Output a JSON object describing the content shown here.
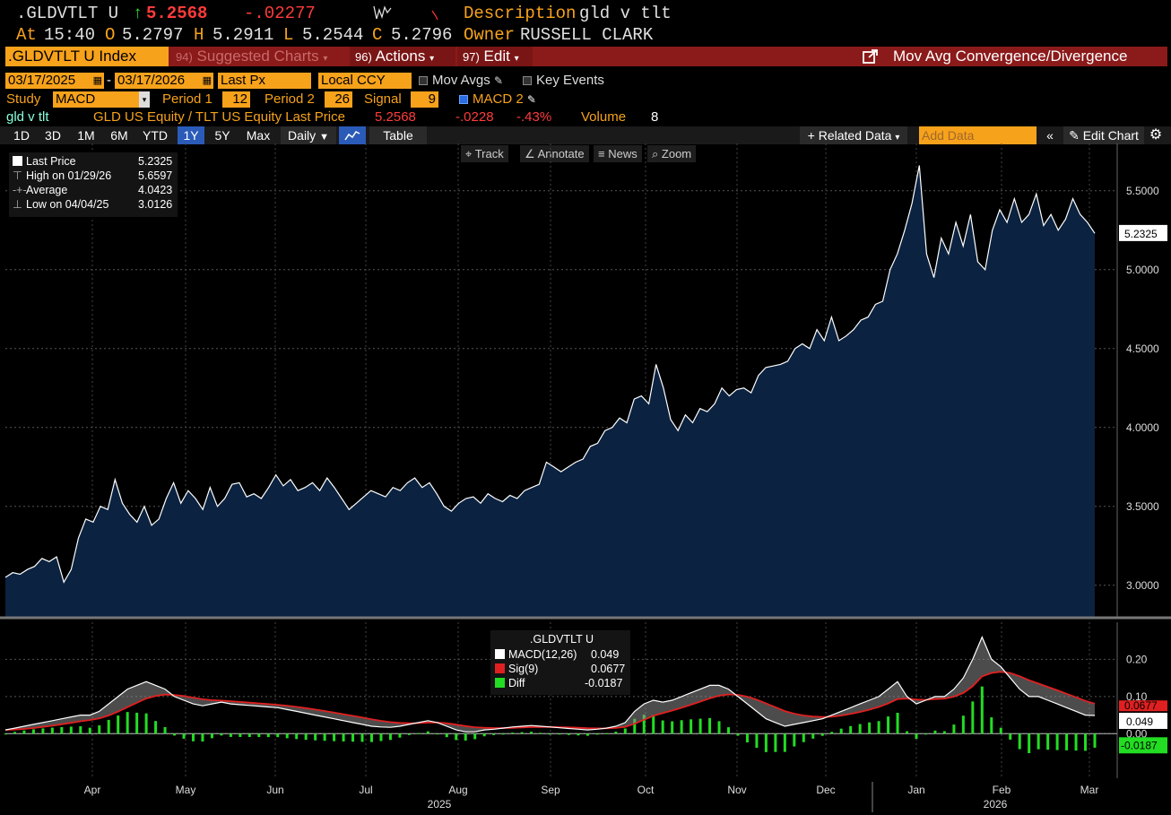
{
  "header": {
    "ticker": ".GLDVTLT U",
    "arrow": "↑",
    "last": "5.2568",
    "change": "-.02277",
    "desc_label": "Description",
    "desc_value": "gld v tlt",
    "at_label": "At",
    "time": "15:40",
    "o_label": "O",
    "open": "5.2797",
    "h_label": "H",
    "high": "5.2911",
    "l_label": "L",
    "low": "5.2544",
    "c_label": "C",
    "close": "5.2796",
    "owner_label": "Owner",
    "owner_value": "RUSSELL CLARK"
  },
  "menu": {
    "security": ".GLDVTLT U Index",
    "suggested_num": "94)",
    "suggested": "Suggested Charts",
    "actions_num": "96)",
    "actions": "Actions",
    "edit_num": "97)",
    "edit": "Edit",
    "study_title": "Mov Avg Convergence/Divergence"
  },
  "controls": {
    "start_date": "03/17/2025",
    "dash": "-",
    "end_date": "03/17/2026",
    "price_type": "Last Px",
    "currency": "Local CCY",
    "mov_avgs": "Mov Avgs",
    "key_events": "Key Events",
    "study_label": "Study",
    "study_value": "MACD",
    "period1_label": "Period 1",
    "period1": "12",
    "period2_label": "Period 2",
    "period2": "26",
    "signal_label": "Signal",
    "signal": "9",
    "macd2": "MACD 2"
  },
  "info_row": {
    "name": "gld v tlt",
    "formula": "GLD US Equity / TLT US Equity Last Price",
    "last": "5.2568",
    "change": "-.0228",
    "pct": "-.43%",
    "volume_label": "Volume",
    "volume": "8"
  },
  "tabs": [
    "1D",
    "3D",
    "1M",
    "6M",
    "YTD",
    "1Y",
    "5Y",
    "Max"
  ],
  "selected_tab": "1Y",
  "frequency": "Daily",
  "table_label": "Table",
  "related_data": "Related Data",
  "add_data_placeholder": "Add Data",
  "edit_chart": "Edit Chart",
  "subtoolbar": {
    "track": "Track",
    "annotate": "Annotate",
    "news": "News",
    "zoom": "Zoom"
  },
  "legend_price": {
    "last_label": "Last Price",
    "last_value": "5.2325",
    "high_label": "High on 01/29/26",
    "high_value": "5.6597",
    "avg_label": "Average",
    "avg_value": "4.0423",
    "low_label": "Low on 04/04/25",
    "low_value": "3.0126"
  },
  "legend_macd": {
    "title": ".GLDVTLT U",
    "macd_label": "MACD(12,26)",
    "macd_value": "0.049",
    "sig_label": "Sig(9)",
    "sig_value": "0.0677",
    "diff_label": "Diff",
    "diff_value": "-0.0187"
  },
  "colors": {
    "orange": "#f7a21b",
    "menu_red": "#8b1a1a",
    "area_fill": "#0b2240",
    "price_line": "#ffffff",
    "signal_red": "#e02020",
    "diff_green": "#22dd22"
  },
  "chart_data": [
    {
      "type": "area",
      "title": "GLD US Equity / TLT US Equity Last Price",
      "x_range": [
        "2025-03-17",
        "2026-03-17"
      ],
      "ylim": [
        2.8,
        5.8
      ],
      "yticks": [
        "3.0000",
        "3.5000",
        "4.0000",
        "4.5000",
        "5.0000",
        "5.5000"
      ],
      "last_label": "5.2325",
      "months": [
        "Apr",
        "May",
        "Jun",
        "Jul",
        "Aug",
        "Sep",
        "Oct",
        "Nov",
        "Dec",
        "Jan",
        "Feb",
        "Mar"
      ],
      "year_labels": [
        "2025",
        "2026"
      ],
      "values": [
        3.05,
        3.08,
        3.07,
        3.1,
        3.12,
        3.17,
        3.15,
        3.18,
        3.02,
        3.1,
        3.3,
        3.42,
        3.4,
        3.5,
        3.48,
        3.67,
        3.52,
        3.45,
        3.4,
        3.5,
        3.38,
        3.42,
        3.55,
        3.65,
        3.52,
        3.6,
        3.55,
        3.48,
        3.62,
        3.5,
        3.55,
        3.64,
        3.65,
        3.56,
        3.58,
        3.55,
        3.62,
        3.7,
        3.63,
        3.67,
        3.6,
        3.62,
        3.65,
        3.6,
        3.68,
        3.62,
        3.55,
        3.48,
        3.52,
        3.56,
        3.6,
        3.58,
        3.56,
        3.62,
        3.6,
        3.65,
        3.68,
        3.62,
        3.65,
        3.58,
        3.5,
        3.47,
        3.52,
        3.55,
        3.56,
        3.52,
        3.58,
        3.55,
        3.53,
        3.57,
        3.55,
        3.6,
        3.62,
        3.64,
        3.78,
        3.75,
        3.72,
        3.75,
        3.78,
        3.8,
        3.88,
        3.9,
        3.98,
        4.0,
        4.06,
        4.03,
        4.18,
        4.2,
        4.15,
        4.4,
        4.25,
        4.05,
        3.98,
        4.08,
        4.03,
        4.12,
        4.1,
        4.15,
        4.25,
        4.2,
        4.24,
        4.25,
        4.22,
        4.33,
        4.38,
        4.39,
        4.4,
        4.42,
        4.5,
        4.53,
        4.5,
        4.62,
        4.55,
        4.7,
        4.55,
        4.58,
        4.62,
        4.68,
        4.7,
        4.78,
        4.8,
        5.0,
        5.1,
        5.25,
        5.42,
        5.66,
        5.1,
        4.95,
        5.2,
        5.1,
        5.3,
        5.15,
        5.35,
        5.05,
        5.0,
        5.25,
        5.38,
        5.3,
        5.45,
        5.3,
        5.35,
        5.48,
        5.28,
        5.35,
        5.25,
        5.32,
        5.45,
        5.35,
        5.3,
        5.23
      ]
    },
    {
      "type": "line",
      "title": "MACD(12,26) / Sig(9) / Diff",
      "ylim": [
        -0.12,
        0.3
      ],
      "yticks": [
        "0.00",
        "0.10",
        "0.20"
      ],
      "macd_last": "0.049",
      "signal_last": "0.0677",
      "diff_last": "-0.0187",
      "macd": [
        0.01,
        0.015,
        0.02,
        0.025,
        0.03,
        0.035,
        0.04,
        0.045,
        0.05,
        0.05,
        0.06,
        0.08,
        0.1,
        0.12,
        0.13,
        0.14,
        0.13,
        0.12,
        0.1,
        0.09,
        0.08,
        0.075,
        0.08,
        0.085,
        0.08,
        0.078,
        0.076,
        0.074,
        0.072,
        0.07,
        0.065,
        0.06,
        0.055,
        0.05,
        0.045,
        0.04,
        0.035,
        0.03,
        0.025,
        0.02,
        0.018,
        0.017,
        0.02,
        0.025,
        0.03,
        0.035,
        0.03,
        0.02,
        0.01,
        0.005,
        0.005,
        0.01,
        0.012,
        0.015,
        0.018,
        0.02,
        0.022,
        0.02,
        0.018,
        0.016,
        0.014,
        0.012,
        0.01,
        0.012,
        0.015,
        0.02,
        0.03,
        0.06,
        0.08,
        0.09,
        0.085,
        0.09,
        0.1,
        0.11,
        0.12,
        0.13,
        0.13,
        0.12,
        0.1,
        0.08,
        0.06,
        0.04,
        0.03,
        0.02,
        0.025,
        0.03,
        0.035,
        0.04,
        0.05,
        0.06,
        0.07,
        0.08,
        0.09,
        0.1,
        0.12,
        0.14,
        0.1,
        0.08,
        0.09,
        0.1,
        0.1,
        0.12,
        0.15,
        0.2,
        0.26,
        0.2,
        0.18,
        0.15,
        0.12,
        0.1,
        0.1,
        0.09,
        0.08,
        0.07,
        0.06,
        0.05,
        0.049
      ]
    }
  ]
}
